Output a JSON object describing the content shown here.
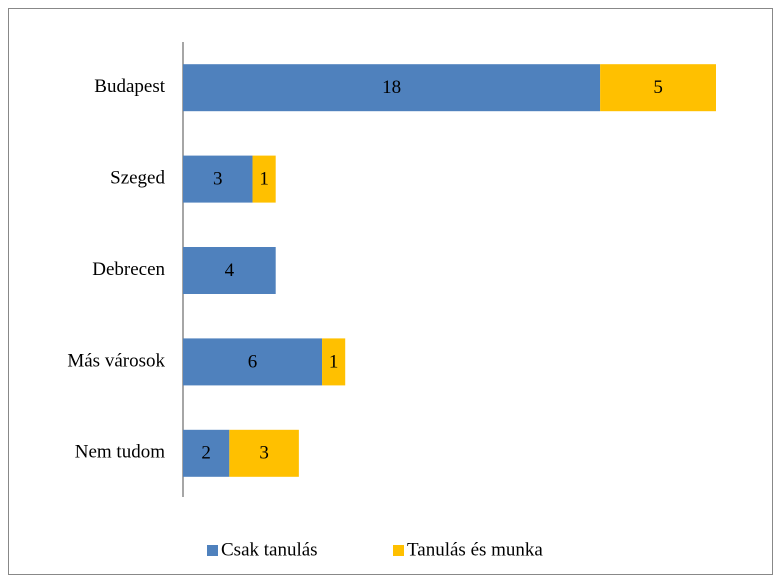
{
  "chart_data": {
    "type": "stacked-bar-horizontal",
    "categories": [
      "Budapest",
      "Szeged",
      "Debrecen",
      "Más városok",
      "Nem tudom"
    ],
    "series": [
      {
        "name": "Csak tanulás",
        "color": "#4f81bd",
        "values": [
          18,
          3,
          4,
          6,
          2
        ]
      },
      {
        "name": "Tanulás és munka",
        "color": "#ffc000",
        "values": [
          5,
          1,
          null,
          1,
          3
        ]
      }
    ],
    "legend": "bottom"
  }
}
